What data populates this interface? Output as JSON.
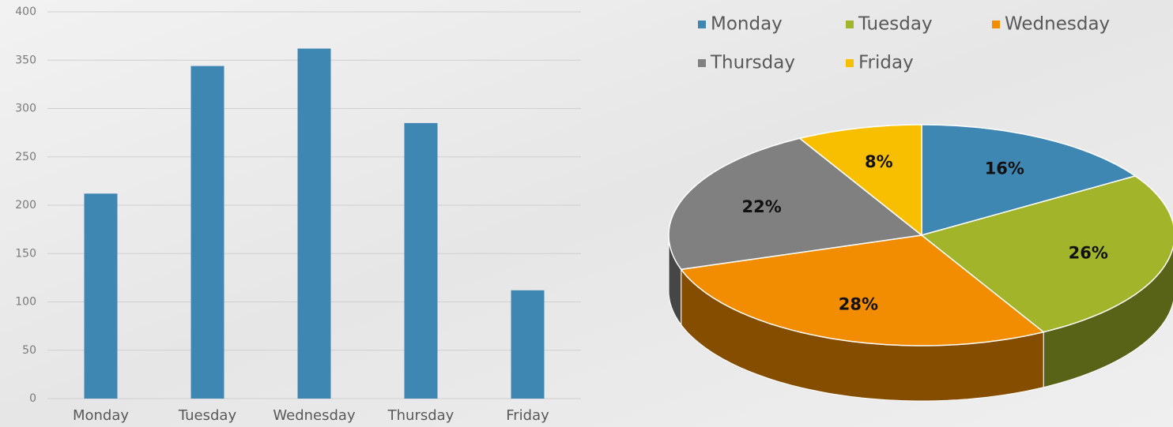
{
  "chart_data": [
    {
      "type": "bar",
      "categories": [
        "Monday",
        "Tuesday",
        "Wednesday",
        "Thursday",
        "Friday"
      ],
      "values": [
        212,
        344,
        362,
        285,
        112
      ],
      "color": "#3f87b3",
      "ylim": [
        0,
        400
      ],
      "yticks": [
        0,
        50,
        100,
        150,
        200,
        250,
        300,
        350,
        400
      ],
      "grid": true
    },
    {
      "type": "pie",
      "categories": [
        "Monday",
        "Tuesday",
        "Wednesday",
        "Thursday",
        "Friday"
      ],
      "values": [
        16,
        26,
        28,
        22,
        8
      ],
      "value_labels": [
        "16%",
        "26%",
        "28%",
        "22%",
        "8%"
      ],
      "colors": [
        "#3f87b3",
        "#a2b42a",
        "#f28c00",
        "#808080",
        "#f8be00"
      ],
      "legend": "top"
    }
  ]
}
